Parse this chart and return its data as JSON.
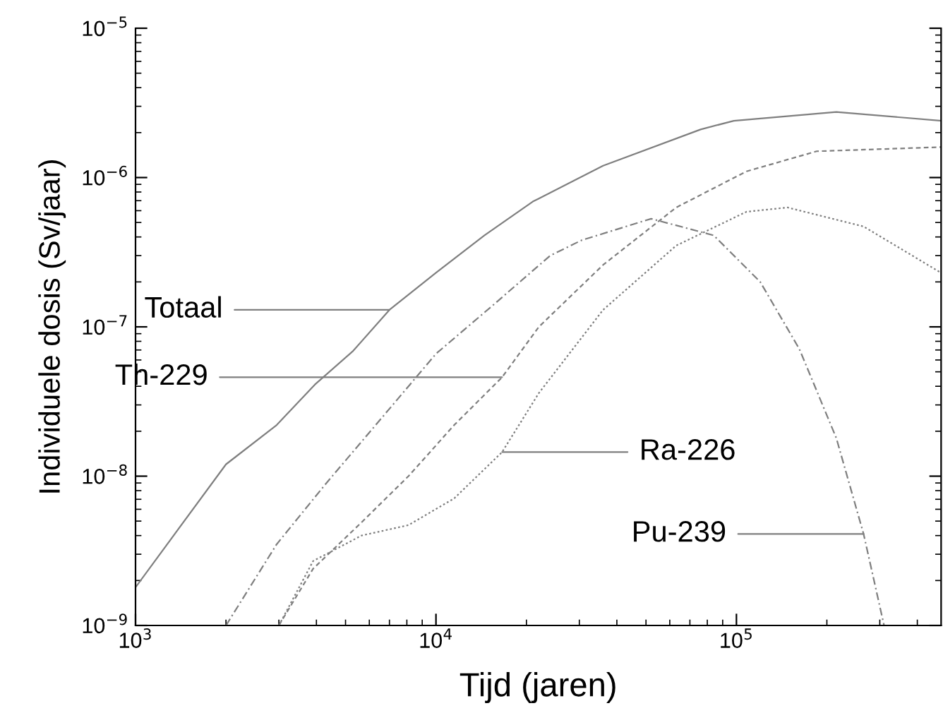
{
  "chart_data": {
    "type": "line",
    "xlabel": "Tijd (jaren)",
    "ylabel": "Individuele dosis (Sv/jaar)",
    "log": "xy",
    "grid": false,
    "legend": false,
    "marker": "none",
    "xlim": [
      1000,
      480000
    ],
    "ylim": [
      1e-09,
      1e-05
    ],
    "xticks": [
      {
        "value": 1000,
        "label": "10$^{3}$"
      },
      {
        "value": 10000,
        "label": "10$^{4}$"
      },
      {
        "value": 100000,
        "label": "10$^{5}$"
      }
    ],
    "yticks": [
      {
        "value": 1e-09,
        "label": "10$^{−9}$"
      },
      {
        "value": 1e-08,
        "label": "10$^{−8}$"
      },
      {
        "value": 1e-07,
        "label": "10$^{−7}$"
      },
      {
        "value": 1e-06,
        "label": "10$^{−6}$"
      },
      {
        "value": 1e-05,
        "label": "10$^{−5}$"
      }
    ],
    "series": [
      {
        "color": "#7f7f7f",
        "line_style": "solid",
        "x": [
          1000,
          2000,
          2950,
          3950,
          5300,
          7000,
          10000,
          14500,
          21000,
          36000,
          76000,
          98000,
          215000,
          480000
        ],
        "values": [
          1.8e-09,
          1.2e-08,
          2.2e-08,
          4.1e-08,
          6.9e-08,
          1.3e-07,
          2.3e-07,
          4.1e-07,
          6.9e-07,
          1.2e-06,
          2.1e-06,
          2.4e-06,
          2.75e-06,
          2.4e-06
        ]
      },
      {
        "color": "#7f7f7f",
        "line_style": "dashdot",
        "x": [
          2000,
          2950,
          4300,
          6300,
          10000,
          15500,
          24000,
          30500,
          52000,
          84000,
          120000,
          162000,
          215000,
          265000,
          310000
        ],
        "values": [
          1e-09,
          3.5e-09,
          8.9e-09,
          2.2e-08,
          6.6e-08,
          1.4e-07,
          3e-07,
          3.8e-07,
          5.3e-07,
          4.1e-07,
          2e-07,
          7.1e-08,
          1.8e-08,
          4.1e-09,
          1e-09
        ]
      },
      {
        "color": "#7f7f7f",
        "line_style": "dashed",
        "x": [
          3000,
          3900,
          5650,
          8100,
          11500,
          16600,
          22000,
          36000,
          63000,
          108000,
          185000,
          480000
        ],
        "values": [
          1e-09,
          2.4e-09,
          4.9e-09,
          1e-08,
          2.2e-08,
          4.6e-08,
          1e-07,
          2.6e-07,
          6.3e-07,
          1.1e-06,
          1.5e-06,
          1.6e-06
        ]
      },
      {
        "color": "#7f7f7f",
        "line_style": "dotted",
        "x": [
          3000,
          3900,
          5650,
          8100,
          11500,
          16600,
          22000,
          36000,
          63000,
          108000,
          148000,
          265000,
          480000
        ],
        "values": [
          1e-09,
          2.7e-09,
          4e-09,
          4.7e-09,
          7.1e-09,
          1.45e-08,
          3.6e-08,
          1.3e-07,
          3.5e-07,
          5.9e-07,
          6.3e-07,
          4.7e-07,
          2.3e-07
        ]
      }
    ],
    "annotations": [
      {
        "text": "Totaal",
        "x": 7000,
        "y": 1.3e-07
      },
      {
        "text": "Th-229",
        "x": 16600,
        "y": 4.6e-08
      },
      "Ra-226",
      "Pu-239"
    ]
  }
}
